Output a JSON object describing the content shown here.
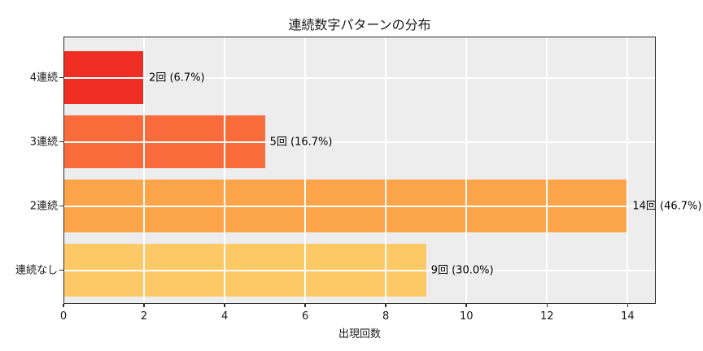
{
  "chart_data": {
    "type": "bar",
    "orientation": "horizontal",
    "title": "連続数字パターンの分布",
    "xlabel": "出現回数",
    "ylabel": "",
    "categories": [
      "4連続",
      "3連続",
      "2連続",
      "連続なし"
    ],
    "values": [
      2,
      5,
      14,
      9
    ],
    "value_labels": [
      "2回 (6.7%)",
      "5回 (16.7%)",
      "14回 (46.7%)",
      "9回 (30.0%)"
    ],
    "bar_colors": [
      "#ee2e23",
      "#f96b3b",
      "#fba44a",
      "#fdc967"
    ],
    "xlim": [
      0,
      14.7
    ],
    "xticks": [
      0,
      2,
      4,
      6,
      8,
      10,
      12,
      14
    ],
    "grid": true,
    "grid_on_top_of_bars": true,
    "legend": "none",
    "plot_background": "#ededed",
    "grid_color": "#ffffff",
    "spine_color": "#2e2e2e"
  }
}
